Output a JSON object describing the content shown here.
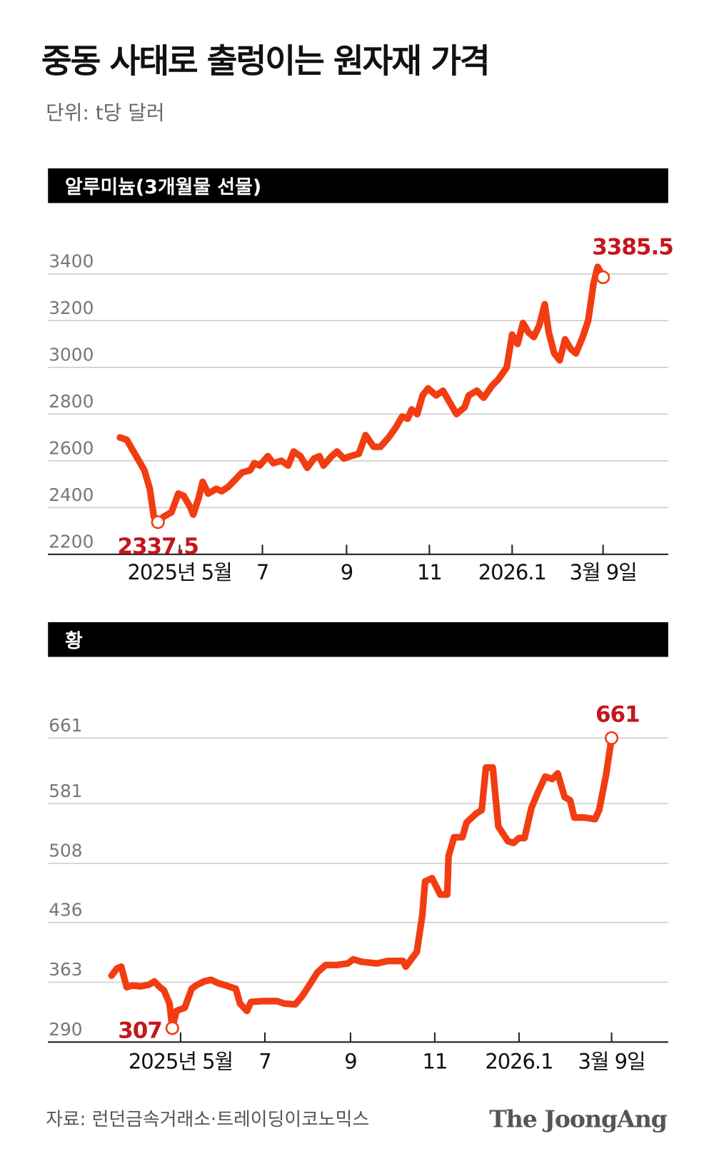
{
  "title": "중동 사태로 출렁이는 원자재 가격",
  "subtitle": "단위: t당 달러",
  "source": "자료: 런던금속거래소·트레이딩이코노믹스",
  "brand": "The JoongAng",
  "chart_data": [
    {
      "type": "line",
      "title": "알루미늄(3개월물 선물)",
      "x": [
        "2025-03-18",
        "2025-03-23",
        "2025-03-30",
        "2025-04-05",
        "2025-04-09",
        "2025-04-12",
        "2025-04-15",
        "2025-04-19",
        "2025-04-25",
        "2025-04-30",
        "2025-05-04",
        "2025-05-09",
        "2025-05-11",
        "2025-05-15",
        "2025-05-18",
        "2025-05-22",
        "2025-05-28",
        "2025-06-01",
        "2025-06-06",
        "2025-06-11",
        "2025-06-16",
        "2025-06-22",
        "2025-06-25",
        "2025-06-29",
        "2025-07-05",
        "2025-07-09",
        "2025-07-15",
        "2025-07-20",
        "2025-07-24",
        "2025-07-29",
        "2025-08-03",
        "2025-08-08",
        "2025-08-12",
        "2025-08-15",
        "2025-08-21",
        "2025-08-25",
        "2025-08-30",
        "2025-09-04",
        "2025-09-10",
        "2025-09-15",
        "2025-09-21",
        "2025-09-26",
        "2025-10-02",
        "2025-10-07",
        "2025-10-12",
        "2025-10-16",
        "2025-10-19",
        "2025-10-23",
        "2025-10-27",
        "2025-10-31",
        "2025-11-06",
        "2025-11-11",
        "2025-11-17",
        "2025-11-21",
        "2025-11-27",
        "2025-11-30",
        "2025-12-06",
        "2025-12-11",
        "2025-12-17",
        "2025-12-22",
        "2025-12-28",
        "2026-01-01",
        "2026-01-05",
        "2026-01-09",
        "2026-01-13",
        "2026-01-17",
        "2026-01-21",
        "2026-01-25",
        "2026-01-28",
        "2026-02-01",
        "2026-02-05",
        "2026-02-09",
        "2026-02-13",
        "2026-02-17",
        "2026-02-22",
        "2026-02-26",
        "2026-03-02",
        "2026-03-05",
        "2026-03-08",
        "2026-03-09"
      ],
      "series": [
        {
          "name": "알루미늄",
          "color": "#f23c12",
          "values": [
            2700,
            2690,
            2620,
            2560,
            2480,
            2360,
            2337.5,
            2360,
            2380,
            2460,
            2450,
            2400,
            2370,
            2440,
            2510,
            2460,
            2480,
            2470,
            2490,
            2520,
            2550,
            2560,
            2590,
            2580,
            2620,
            2590,
            2600,
            2580,
            2640,
            2620,
            2570,
            2610,
            2620,
            2580,
            2620,
            2640,
            2610,
            2620,
            2630,
            2710,
            2660,
            2660,
            2700,
            2740,
            2790,
            2780,
            2820,
            2800,
            2880,
            2910,
            2880,
            2900,
            2840,
            2800,
            2830,
            2880,
            2900,
            2870,
            2920,
            2950,
            3000,
            3140,
            3100,
            3190,
            3150,
            3130,
            3180,
            3270,
            3150,
            3060,
            3030,
            3120,
            3080,
            3060,
            3130,
            3200,
            3360,
            3430,
            3400,
            3385.5
          ]
        }
      ],
      "xlim": [
        "2025-01-24",
        "2026-04-26"
      ],
      "xticks": [
        {
          "value": "2025-05-01",
          "label": "2025년 5월"
        },
        {
          "value": "2025-07-01",
          "label": "7"
        },
        {
          "value": "2025-09-01",
          "label": "9"
        },
        {
          "value": "2025-11-01",
          "label": "11"
        },
        {
          "value": "2026-01-01",
          "label": "2026.1"
        },
        {
          "value": "2026-03-09",
          "label": "3월 9일"
        }
      ],
      "ylim": [
        2200,
        3400
      ],
      "yticks": [
        2200,
        2400,
        2600,
        2800,
        3000,
        3200,
        3400
      ],
      "grid": true
    },
    {
      "type": "line",
      "title": "황",
      "x": [
        "2025-03-12",
        "2025-03-16",
        "2025-03-19",
        "2025-03-23",
        "2025-03-27",
        "2025-04-02",
        "2025-04-08",
        "2025-04-12",
        "2025-04-16",
        "2025-04-19",
        "2025-04-23",
        "2025-04-25",
        "2025-04-28",
        "2025-05-04",
        "2025-05-09",
        "2025-05-12",
        "2025-05-18",
        "2025-05-23",
        "2025-05-28",
        "2025-06-03",
        "2025-06-10",
        "2025-06-13",
        "2025-06-18",
        "2025-06-21",
        "2025-06-29",
        "2025-07-10",
        "2025-07-15",
        "2025-07-23",
        "2025-07-28",
        "2025-08-02",
        "2025-08-08",
        "2025-08-14",
        "2025-08-22",
        "2025-08-30",
        "2025-09-03",
        "2025-09-09",
        "2025-09-20",
        "2025-09-28",
        "2025-10-09",
        "2025-10-11",
        "2025-10-19",
        "2025-10-23",
        "2025-10-25",
        "2025-10-30",
        "2025-11-05",
        "2025-11-10",
        "2025-11-11",
        "2025-11-15",
        "2025-11-21",
        "2025-11-24",
        "2025-12-01",
        "2025-12-05",
        "2025-12-08",
        "2025-12-13",
        "2025-12-17",
        "2025-12-24",
        "2025-12-28",
        "2026-01-01",
        "2026-01-05",
        "2026-01-10",
        "2026-01-15",
        "2026-01-20",
        "2026-01-25",
        "2026-01-29",
        "2026-02-03",
        "2026-02-07",
        "2026-02-10",
        "2026-02-17",
        "2026-02-25",
        "2026-02-28",
        "2026-03-05",
        "2026-03-09"
      ],
      "series": [
        {
          "name": "황",
          "color": "#f23c12",
          "values": [
            371,
            380,
            382,
            357,
            359,
            358,
            360,
            364,
            357,
            353,
            337,
            307,
            328,
            332,
            355,
            359,
            364,
            366,
            362,
            359,
            355,
            337,
            328,
            339,
            340,
            340,
            337,
            336,
            346,
            359,
            375,
            384,
            384,
            386,
            391,
            388,
            386,
            389,
            389,
            382,
            400,
            445,
            486,
            490,
            470,
            470,
            517,
            540,
            540,
            558,
            569,
            573,
            625,
            625,
            553,
            535,
            533,
            539,
            539,
            576,
            596,
            614,
            611,
            618,
            589,
            585,
            564,
            564,
            562,
            573,
            616,
            661
          ]
        }
      ],
      "xlim": [
        "2025-01-25",
        "2026-04-19"
      ],
      "xticks": [
        {
          "value": "2025-05-01",
          "label": "2025년 5월"
        },
        {
          "value": "2025-07-01",
          "label": "7"
        },
        {
          "value": "2025-09-01",
          "label": "9"
        },
        {
          "value": "2025-11-01",
          "label": "11"
        },
        {
          "value": "2026-01-01",
          "label": "2026.1"
        },
        {
          "value": "2026-03-09",
          "label": "3월 9일"
        }
      ],
      "ylim": [
        290,
        661
      ],
      "yticks": [
        290,
        363,
        436,
        508,
        581,
        661
      ],
      "grid": true
    }
  ]
}
